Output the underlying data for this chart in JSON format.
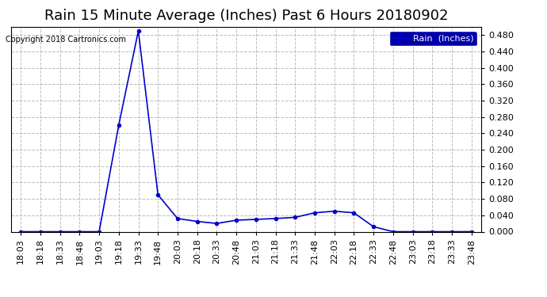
{
  "title": "Rain 15 Minute Average (Inches) Past 6 Hours 20180902",
  "copyright": "Copyright 2018 Cartronics.com",
  "legend_label": "Rain  (Inches)",
  "line_color": "#0000CC",
  "background_color": "#ffffff",
  "grid_color": "#bbbbbb",
  "ylim": [
    0.0,
    0.5
  ],
  "yticks": [
    0.0,
    0.04,
    0.08,
    0.12,
    0.16,
    0.2,
    0.24,
    0.28,
    0.32,
    0.36,
    0.4,
    0.44,
    0.48
  ],
  "x_labels": [
    "18:03",
    "18:18",
    "18:33",
    "18:48",
    "19:03",
    "19:18",
    "19:33",
    "19:48",
    "20:03",
    "20:18",
    "20:33",
    "20:48",
    "21:03",
    "21:18",
    "21:33",
    "21:48",
    "22:03",
    "22:18",
    "22:33",
    "22:48",
    "23:03",
    "23:18",
    "23:33",
    "23:48"
  ],
  "values": [
    0.0,
    0.0,
    0.0,
    0.0,
    0.0,
    0.26,
    0.49,
    0.09,
    0.032,
    0.025,
    0.02,
    0.028,
    0.03,
    0.032,
    0.035,
    0.046,
    0.05,
    0.046,
    0.012,
    0.0,
    0.0,
    0.0,
    0.0,
    0.0
  ],
  "title_fontsize": 13,
  "axis_fontsize": 8,
  "copyright_fontsize": 7,
  "legend_fontsize": 8,
  "marker": "o",
  "marker_size": 3,
  "line_width": 1.2
}
